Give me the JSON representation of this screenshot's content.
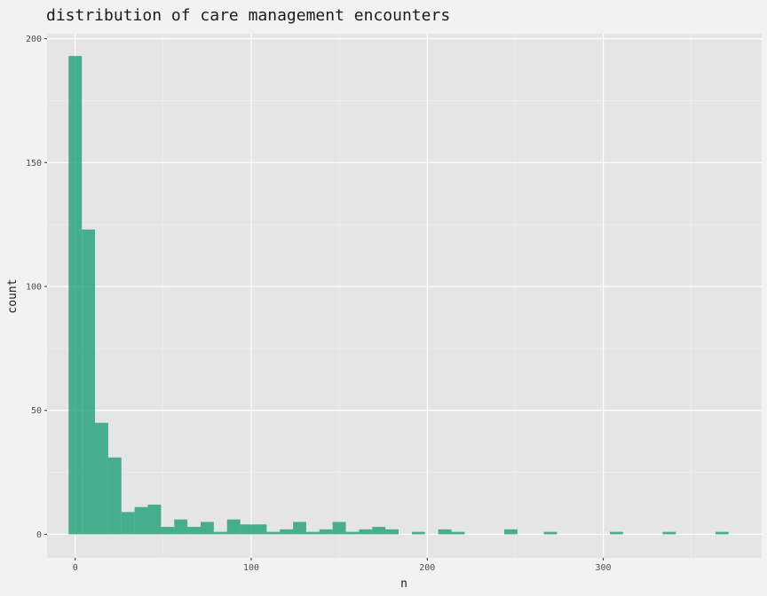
{
  "chart_data": {
    "type": "bar",
    "title": "distribution of care management encounters",
    "xlabel": "n",
    "ylabel": "count",
    "xlim": [
      -16,
      390
    ],
    "ylim": [
      -9.5,
      202
    ],
    "x_ticks": [
      0,
      100,
      200,
      300
    ],
    "y_ticks": [
      0,
      50,
      100,
      150,
      200
    ],
    "bin_width": 7.5,
    "bar_color": "#1b9e77",
    "panel_background": "#e5e5e5",
    "grid": true,
    "bins": [
      {
        "x": 0,
        "count": 193
      },
      {
        "x": 7.5,
        "count": 123
      },
      {
        "x": 15,
        "count": 45
      },
      {
        "x": 22.5,
        "count": 31
      },
      {
        "x": 30,
        "count": 9
      },
      {
        "x": 37.5,
        "count": 11
      },
      {
        "x": 45,
        "count": 12
      },
      {
        "x": 52.5,
        "count": 3
      },
      {
        "x": 60,
        "count": 6
      },
      {
        "x": 67.5,
        "count": 3
      },
      {
        "x": 75,
        "count": 5
      },
      {
        "x": 82.5,
        "count": 1
      },
      {
        "x": 90,
        "count": 6
      },
      {
        "x": 97.5,
        "count": 4
      },
      {
        "x": 105,
        "count": 4
      },
      {
        "x": 112.5,
        "count": 1
      },
      {
        "x": 120,
        "count": 2
      },
      {
        "x": 127.5,
        "count": 5
      },
      {
        "x": 135,
        "count": 1
      },
      {
        "x": 142.5,
        "count": 2
      },
      {
        "x": 150,
        "count": 5
      },
      {
        "x": 157.5,
        "count": 1
      },
      {
        "x": 165,
        "count": 2
      },
      {
        "x": 172.5,
        "count": 3
      },
      {
        "x": 180,
        "count": 2
      },
      {
        "x": 195,
        "count": 1
      },
      {
        "x": 210,
        "count": 2
      },
      {
        "x": 217.5,
        "count": 1
      },
      {
        "x": 247.5,
        "count": 2
      },
      {
        "x": 270,
        "count": 1
      },
      {
        "x": 307.5,
        "count": 1
      },
      {
        "x": 337.5,
        "count": 1
      },
      {
        "x": 367.5,
        "count": 1
      }
    ]
  }
}
